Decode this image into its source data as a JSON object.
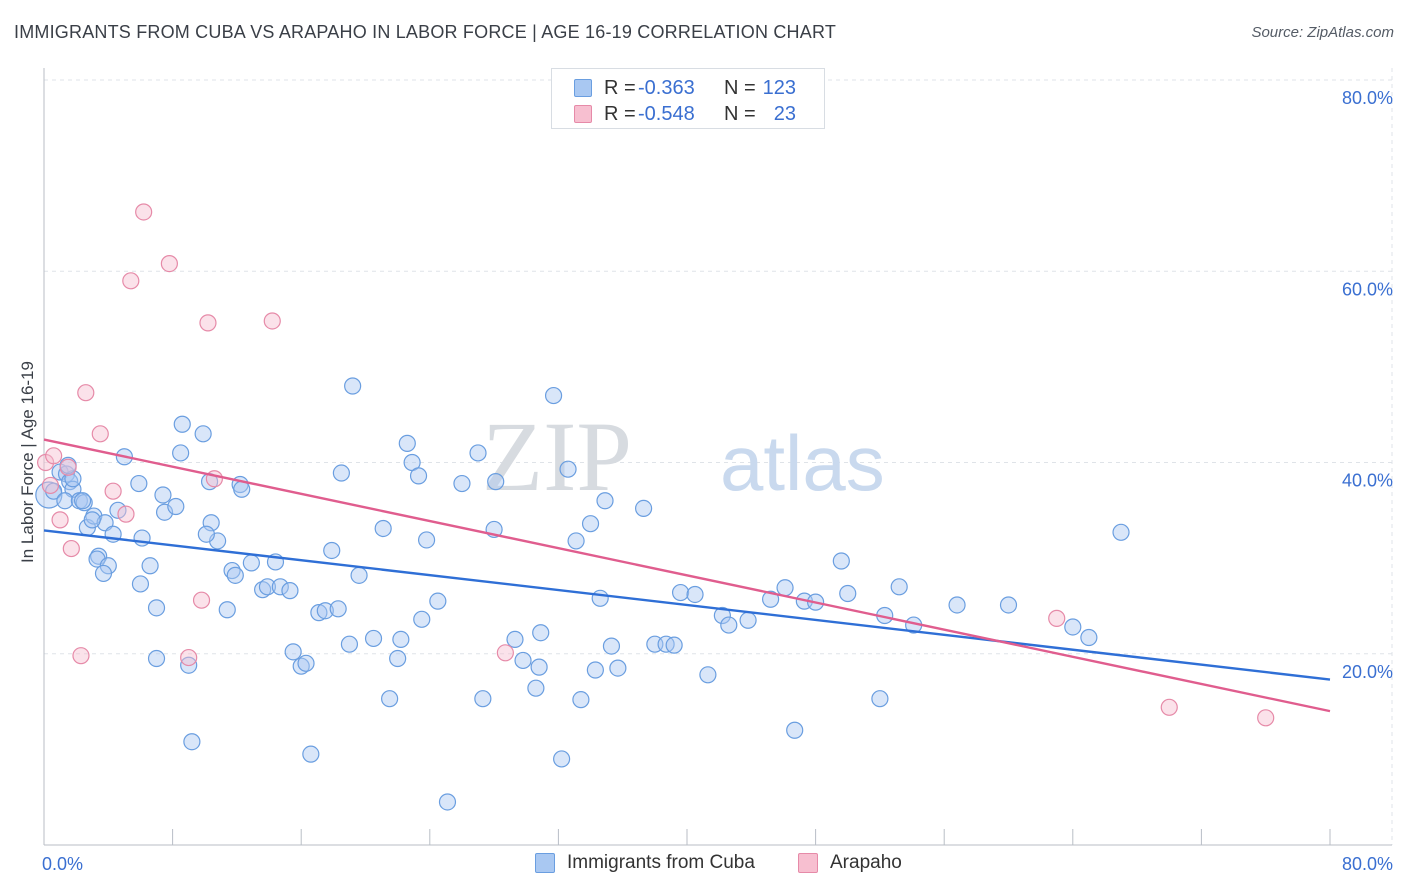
{
  "title": "IMMIGRANTS FROM CUBA VS ARAPAHO IN LABOR FORCE | AGE 16-19 CORRELATION CHART",
  "source": "Source: ZipAtlas.com",
  "watermark": {
    "zip": "ZIP",
    "atlas": "atlas"
  },
  "legend_top": {
    "rows": [
      {
        "r_label": "R =",
        "r_value": "-0.363",
        "n_label": "N =",
        "n_value": "123",
        "color": "#a9c8f2",
        "border": "#6a9ee0"
      },
      {
        "r_label": "R =",
        "r_value": "-0.548",
        "n_label": "N =",
        "n_value": "23",
        "color": "#f7bfd0",
        "border": "#e68aa8"
      }
    ]
  },
  "legend_bottom": {
    "items": [
      {
        "label": "Immigrants from Cuba",
        "color": "#a9c8f2",
        "border": "#6a9ee0"
      },
      {
        "label": "Arapaho",
        "color": "#f7bfd0",
        "border": "#e68aa8"
      }
    ]
  },
  "colors": {
    "series1_fill": "rgba(170,200,242,0.45)",
    "series1_stroke": "#6a9ee0",
    "series1_line": "#2f6fd6",
    "series2_fill": "rgba(247,190,208,0.45)",
    "series2_stroke": "#e68aa8",
    "series2_line": "#e05d8e",
    "tick_label": "#3a6fd1",
    "grid": "#dfe3e8"
  },
  "chart_data": {
    "type": "scatter",
    "title": "IMMIGRANTS FROM CUBA VS ARAPAHO IN LABOR FORCE | AGE 16-19 CORRELATION CHART",
    "xlabel": "",
    "ylabel": "In Labor Force | Age 16-19",
    "xlim": [
      0,
      80
    ],
    "ylim": [
      0,
      80
    ],
    "x_tick_labels": [
      {
        "value": 0,
        "label": "0.0%"
      },
      {
        "value": 80,
        "label": "80.0%"
      }
    ],
    "y_tick_labels": [
      {
        "value": 20,
        "label": "20.0%"
      },
      {
        "value": 40,
        "label": "40.0%"
      },
      {
        "value": 60,
        "label": "60.0%"
      },
      {
        "value": 80,
        "label": "80.0%"
      }
    ],
    "grid": true,
    "legend_position": "top-center",
    "series": [
      {
        "name": "Immigrants from Cuba",
        "r": -0.363,
        "n": 123,
        "trend": {
          "x": [
            0,
            80
          ],
          "y": [
            32.9,
            17.3
          ]
        },
        "points": [
          [
            0.3,
            36.6
          ],
          [
            0.6,
            37.0
          ],
          [
            1.0,
            39.0
          ],
          [
            1.4,
            38.8
          ],
          [
            1.6,
            38.0
          ],
          [
            1.8,
            37.2
          ],
          [
            1.3,
            36.0
          ],
          [
            2.2,
            36.0
          ],
          [
            2.5,
            35.8
          ],
          [
            2.7,
            33.2
          ],
          [
            3.1,
            34.4
          ],
          [
            3.4,
            30.2
          ],
          [
            3.8,
            33.7
          ],
          [
            4.3,
            32.5
          ],
          [
            3.0,
            34.0
          ],
          [
            2.4,
            36.0
          ],
          [
            1.8,
            38.3
          ],
          [
            1.5,
            39.7
          ],
          [
            3.3,
            29.9
          ],
          [
            4.0,
            29.2
          ],
          [
            3.7,
            28.4
          ],
          [
            4.6,
            35.0
          ],
          [
            5.0,
            40.6
          ],
          [
            5.9,
            37.8
          ],
          [
            6.1,
            32.1
          ],
          [
            6.6,
            29.2
          ],
          [
            6.0,
            27.3
          ],
          [
            7.0,
            24.8
          ],
          [
            7.4,
            36.6
          ],
          [
            7.5,
            34.8
          ],
          [
            8.2,
            35.4
          ],
          [
            8.6,
            44.0
          ],
          [
            8.5,
            41.0
          ],
          [
            9.9,
            43.0
          ],
          [
            10.3,
            38.0
          ],
          [
            10.4,
            33.7
          ],
          [
            10.8,
            31.8
          ],
          [
            10.1,
            32.5
          ],
          [
            11.4,
            24.6
          ],
          [
            11.7,
            28.7
          ],
          [
            11.9,
            28.2
          ],
          [
            12.2,
            37.7
          ],
          [
            12.3,
            37.2
          ],
          [
            12.9,
            29.5
          ],
          [
            13.6,
            26.7
          ],
          [
            13.9,
            27.0
          ],
          [
            14.4,
            29.6
          ],
          [
            14.7,
            27.0
          ],
          [
            15.3,
            26.6
          ],
          [
            15.5,
            20.2
          ],
          [
            16.0,
            18.7
          ],
          [
            16.3,
            19.0
          ],
          [
            17.1,
            24.3
          ],
          [
            17.5,
            24.5
          ],
          [
            17.9,
            30.8
          ],
          [
            18.3,
            24.7
          ],
          [
            18.5,
            38.9
          ],
          [
            19.2,
            48.0
          ],
          [
            19.6,
            28.2
          ],
          [
            19.0,
            21.0
          ],
          [
            20.5,
            21.6
          ],
          [
            21.1,
            33.1
          ],
          [
            21.5,
            15.3
          ],
          [
            22.0,
            19.5
          ],
          [
            22.2,
            21.5
          ],
          [
            22.6,
            42.0
          ],
          [
            22.9,
            40.0
          ],
          [
            23.3,
            38.6
          ],
          [
            23.5,
            23.6
          ],
          [
            23.8,
            31.9
          ],
          [
            24.5,
            25.5
          ],
          [
            25.1,
            4.5
          ],
          [
            26.0,
            37.8
          ],
          [
            27.0,
            41.0
          ],
          [
            27.3,
            15.3
          ],
          [
            28.1,
            38.0
          ],
          [
            28.0,
            33.0
          ],
          [
            29.3,
            21.5
          ],
          [
            29.8,
            19.3
          ],
          [
            30.6,
            16.4
          ],
          [
            30.8,
            18.6
          ],
          [
            30.9,
            22.2
          ],
          [
            31.7,
            47.0
          ],
          [
            32.2,
            9.0
          ],
          [
            32.6,
            39.3
          ],
          [
            33.1,
            31.8
          ],
          [
            33.4,
            15.2
          ],
          [
            34.0,
            33.6
          ],
          [
            34.3,
            18.3
          ],
          [
            34.6,
            25.8
          ],
          [
            34.9,
            36.0
          ],
          [
            35.3,
            20.8
          ],
          [
            35.7,
            18.5
          ],
          [
            37.3,
            35.2
          ],
          [
            38.0,
            21.0
          ],
          [
            38.7,
            21.0
          ],
          [
            39.2,
            20.9
          ],
          [
            39.6,
            26.4
          ],
          [
            40.5,
            26.2
          ],
          [
            41.3,
            17.8
          ],
          [
            42.2,
            24.0
          ],
          [
            42.6,
            23.0
          ],
          [
            43.8,
            23.5
          ],
          [
            45.2,
            25.7
          ],
          [
            46.1,
            26.9
          ],
          [
            46.7,
            12.0
          ],
          [
            47.3,
            25.5
          ],
          [
            48.0,
            25.4
          ],
          [
            49.6,
            29.7
          ],
          [
            50.0,
            26.3
          ],
          [
            52.0,
            15.3
          ],
          [
            52.3,
            24.0
          ],
          [
            53.2,
            27.0
          ],
          [
            54.1,
            23.0
          ],
          [
            56.8,
            25.1
          ],
          [
            60.0,
            25.1
          ],
          [
            64.0,
            22.8
          ],
          [
            65.0,
            21.7
          ],
          [
            67.0,
            32.7
          ],
          [
            16.6,
            9.5
          ],
          [
            9.2,
            10.8
          ],
          [
            7.0,
            19.5
          ],
          [
            9.0,
            18.8
          ]
        ]
      },
      {
        "name": "Arapaho",
        "r": -0.548,
        "n": 23,
        "trend": {
          "x": [
            0,
            80
          ],
          "y": [
            42.4,
            14.0
          ]
        },
        "points": [
          [
            0.1,
            40.0
          ],
          [
            0.4,
            37.6
          ],
          [
            0.6,
            40.7
          ],
          [
            1.0,
            34.0
          ],
          [
            1.5,
            39.5
          ],
          [
            1.7,
            31.0
          ],
          [
            2.3,
            19.8
          ],
          [
            2.6,
            47.3
          ],
          [
            3.5,
            43.0
          ],
          [
            4.3,
            37.0
          ],
          [
            5.1,
            34.6
          ],
          [
            5.4,
            59.0
          ],
          [
            6.2,
            66.2
          ],
          [
            7.8,
            60.8
          ],
          [
            9.0,
            19.6
          ],
          [
            9.8,
            25.6
          ],
          [
            10.2,
            54.6
          ],
          [
            10.6,
            38.3
          ],
          [
            14.2,
            54.8
          ],
          [
            28.7,
            20.1
          ],
          [
            63.0,
            23.7
          ],
          [
            70.0,
            14.4
          ],
          [
            76.0,
            13.3
          ]
        ]
      }
    ]
  }
}
